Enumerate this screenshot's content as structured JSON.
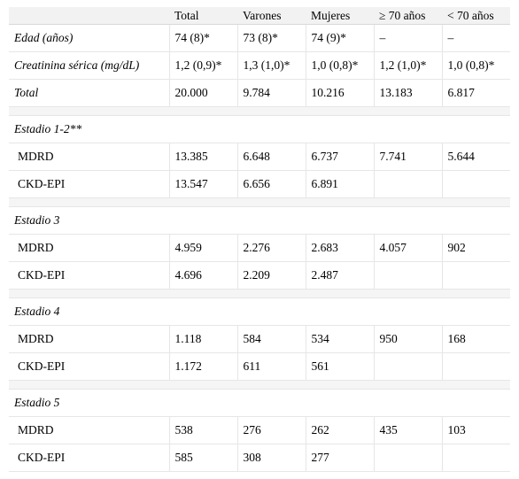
{
  "headers": [
    "",
    "Total",
    "Varones",
    "Mujeres",
    "≥ 70 años",
    "< 70 años"
  ],
  "top_rows": [
    {
      "label": "Edad (años)",
      "values": [
        "74 (8)*",
        "73 (8)*",
        "74 (9)*",
        "–",
        "–"
      ]
    },
    {
      "label": "Creatinina sérica (mg/dL)",
      "values": [
        "1,2 (0,9)*",
        "1,3 (1,0)*",
        "1,0 (0,8)*",
        "1,2 (1,0)*",
        "1,0 (0,8)*"
      ]
    },
    {
      "label": "Total",
      "values": [
        "20.000",
        "9.784",
        "10.216",
        "13.183",
        "6.817"
      ]
    }
  ],
  "stages": [
    {
      "title": "Estadio 1-2**",
      "rows": [
        {
          "label": "MDRD",
          "values": [
            "13.385",
            "6.648",
            "6.737",
            "7.741",
            "5.644"
          ]
        },
        {
          "label": "CKD-EPI",
          "values": [
            "13.547",
            "6.656",
            "6.891",
            "",
            ""
          ]
        }
      ]
    },
    {
      "title": "Estadio 3",
      "rows": [
        {
          "label": "MDRD",
          "values": [
            "4.959",
            "2.276",
            "2.683",
            "4.057",
            "902"
          ]
        },
        {
          "label": "CKD-EPI",
          "values": [
            "4.696",
            "2.209",
            "2.487",
            "",
            ""
          ]
        }
      ]
    },
    {
      "title": "Estadio 4",
      "rows": [
        {
          "label": "MDRD",
          "values": [
            "1.118",
            "584",
            "534",
            "950",
            "168"
          ]
        },
        {
          "label": "CKD-EPI",
          "values": [
            "1.172",
            "611",
            "561",
            "",
            ""
          ]
        }
      ]
    },
    {
      "title": "Estadio 5",
      "rows": [
        {
          "label": "MDRD",
          "values": [
            "538",
            "276",
            "262",
            "435",
            "103"
          ]
        },
        {
          "label": "CKD-EPI",
          "values": [
            "585",
            "308",
            "277",
            "",
            ""
          ]
        }
      ]
    }
  ]
}
